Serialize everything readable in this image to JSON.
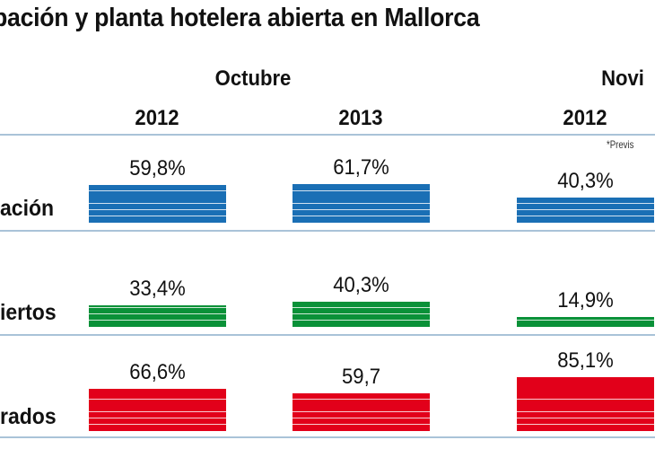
{
  "title": "pación y planta hotelera abierta en Mallorca",
  "note": "*Previs",
  "chart_data": {
    "type": "bar",
    "title": "pación y planta hotelera abierta en Mallorca",
    "groups": [
      {
        "month": "Octubre",
        "years": [
          "2012",
          "2013"
        ]
      },
      {
        "month": "Novi",
        "years": [
          "2012"
        ]
      }
    ],
    "categories": [
      "2012",
      "2013",
      "2012"
    ],
    "series": [
      {
        "name": "ación",
        "color": "#1a6fb5",
        "values": [
          59.8,
          61.7,
          40.3
        ],
        "labels": [
          "59,8%",
          "61,7%",
          "40,3%"
        ]
      },
      {
        "name": "iertos",
        "color": "#0a9138",
        "values": [
          33.4,
          40.3,
          14.9
        ],
        "labels": [
          "33,4%",
          "40,3%",
          "14,9%"
        ]
      },
      {
        "name": "rados",
        "color": "#e2001a",
        "values": [
          66.6,
          59.7,
          85.1
        ],
        "labels": [
          "66,6%",
          "59,7",
          "85,1%"
        ]
      }
    ],
    "ylim": [
      0,
      100
    ]
  }
}
